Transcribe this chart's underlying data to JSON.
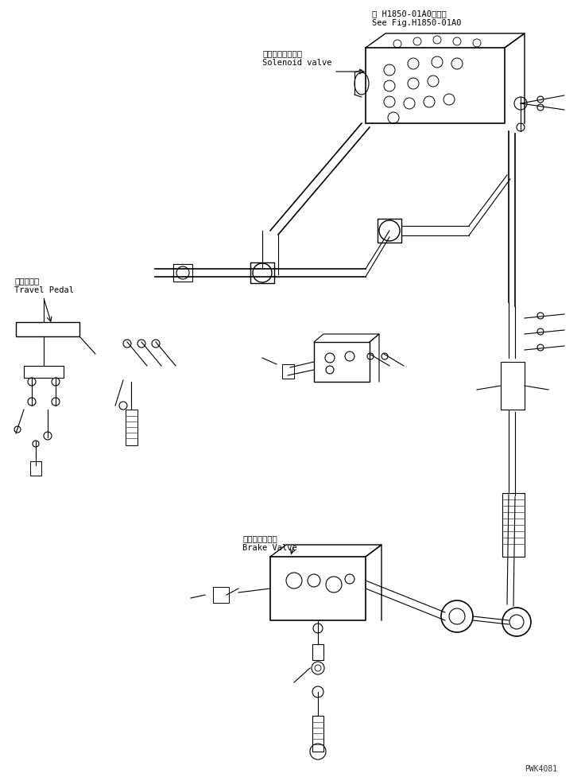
{
  "bg_color": "#ffffff",
  "line_color": "#000000",
  "fig_width": 7.31,
  "fig_height": 9.77,
  "dpi": 100,
  "top_right_text1": "第 H1850-01A0図参照",
  "top_right_text2": "See Fig.H1850-01A0",
  "solenoid_label1": "ソレノイドバルブ",
  "solenoid_label2": "Solenoid valve",
  "travel_label1": "走行ペダル",
  "travel_label2": "Travel Pedal",
  "brake_label1": "ブレーキバルブ",
  "brake_label2": "Brake Valve",
  "watermark": "PWK4081"
}
